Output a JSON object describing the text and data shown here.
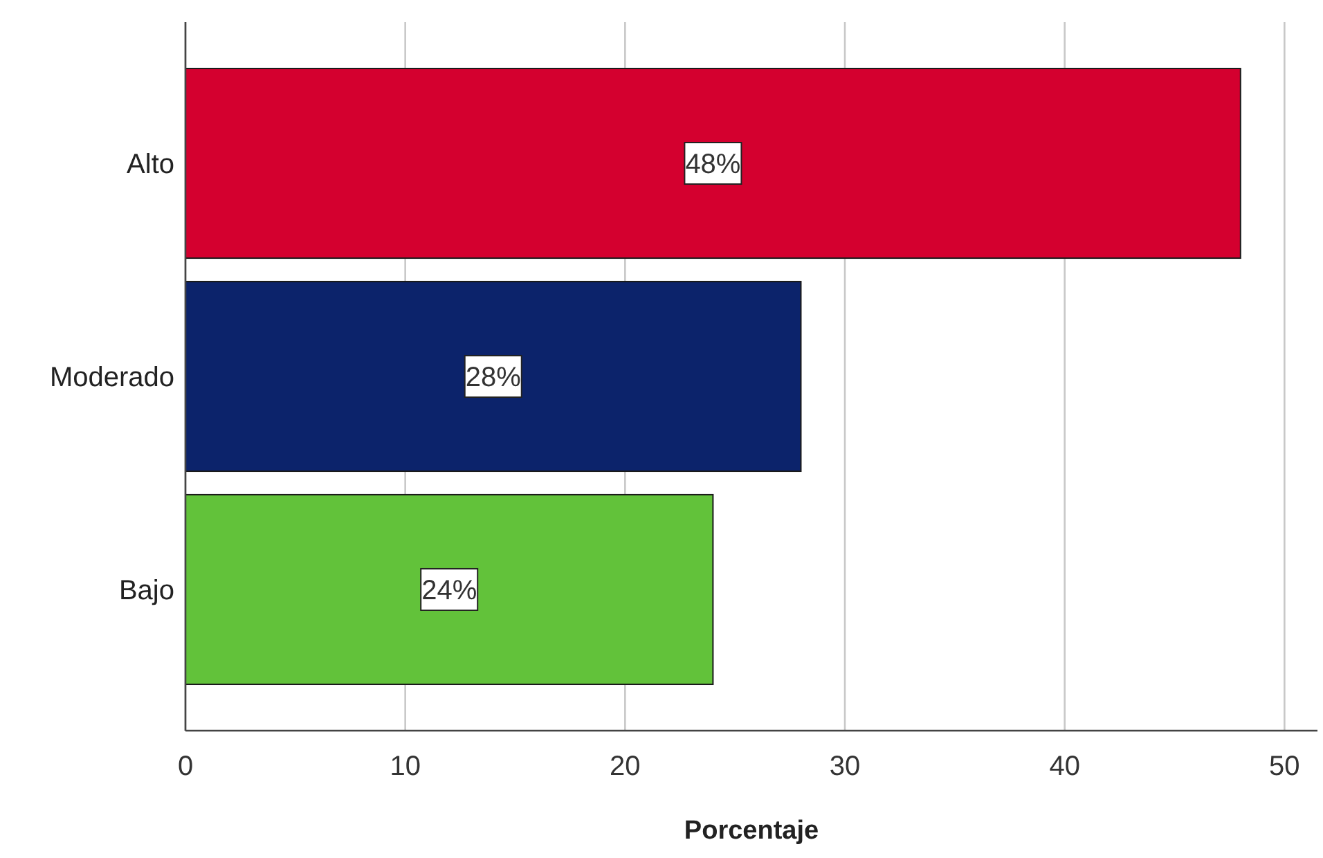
{
  "chart_data": {
    "type": "bar",
    "orientation": "horizontal",
    "xlabel": "Porcentaje",
    "categories": [
      "Alto",
      "Moderado",
      "Bajo"
    ],
    "values": [
      48,
      28,
      24
    ],
    "colors": [
      "#d4002f",
      "#0c236b",
      "#62c23a"
    ],
    "value_labels": [
      "48%",
      "28%",
      "24%"
    ],
    "xlim": [
      0,
      51.5
    ],
    "xticks": [
      0,
      10,
      20,
      30,
      40,
      50
    ],
    "grid": "x"
  }
}
